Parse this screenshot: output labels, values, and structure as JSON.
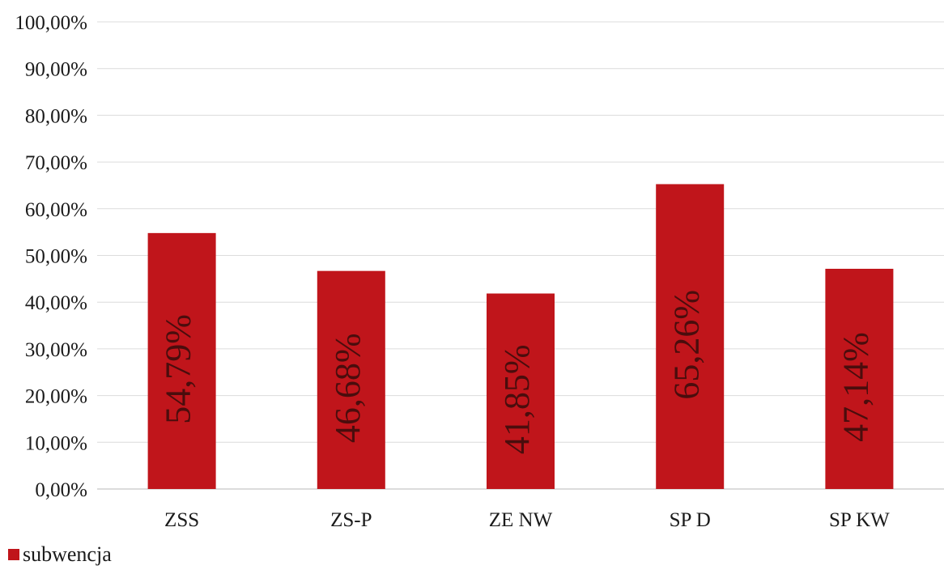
{
  "chart_data": {
    "type": "bar",
    "categories": [
      "ZSS",
      "ZS-P",
      "ZE NW",
      "SP D",
      "SP KW"
    ],
    "series": [
      {
        "name": "subwencja",
        "values": [
          54.79,
          46.68,
          41.85,
          65.26,
          47.14
        ],
        "labels": [
          "54,79%",
          "46,68%",
          "41,85%",
          "65,26%",
          "47,14%"
        ],
        "color": "#c0151b"
      }
    ],
    "y_ticks": [
      "0,00%",
      "10,00%",
      "20,00%",
      "30,00%",
      "40,00%",
      "50,00%",
      "60,00%",
      "70,00%",
      "80,00%",
      "90,00%",
      "100,00%"
    ],
    "ylim": [
      0,
      100
    ],
    "grid": true,
    "legend_position": "bottom-left",
    "title": "",
    "xlabel": "",
    "ylabel": ""
  }
}
